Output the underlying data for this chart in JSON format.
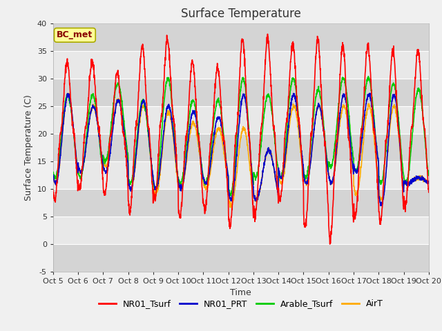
{
  "title": "Surface Temperature",
  "xlabel": "Time",
  "ylabel": "Surface Temperature (C)",
  "ylim": [
    -5,
    40
  ],
  "xlim_days": [
    0,
    15
  ],
  "annotation": "BC_met",
  "bg_color": "#f0f0f0",
  "plot_bg_light": "#e8e8e8",
  "plot_bg_dark": "#d4d4d4",
  "legend": [
    "NR01_Tsurf",
    "NR01_PRT",
    "Arable_Tsurf",
    "AirT"
  ],
  "legend_colors": [
    "#ff0000",
    "#0000cc",
    "#00cc00",
    "#ffaa00"
  ],
  "xtick_labels": [
    "Oct 5",
    "Oct 6",
    "Oct 7",
    "Oct 8",
    "Oct 9",
    "Oct 10",
    "Oct 11",
    "Oct 12",
    "Oct 13",
    "Oct 14",
    "Oct 15",
    "Oct 16",
    "Oct 17",
    "Oct 18",
    "Oct 19",
    "Oct 20"
  ],
  "xtick_positions": [
    0,
    1,
    2,
    3,
    4,
    5,
    6,
    7,
    8,
    9,
    10,
    11,
    12,
    13,
    14,
    15
  ],
  "ytick_positions": [
    -5,
    0,
    5,
    10,
    15,
    20,
    25,
    30,
    35,
    40
  ],
  "grid_color": "#c8c8c8",
  "title_fontsize": 12,
  "label_fontsize": 9,
  "tick_fontsize": 8,
  "annotation_fontsize": 9,
  "line_width": 1.2
}
